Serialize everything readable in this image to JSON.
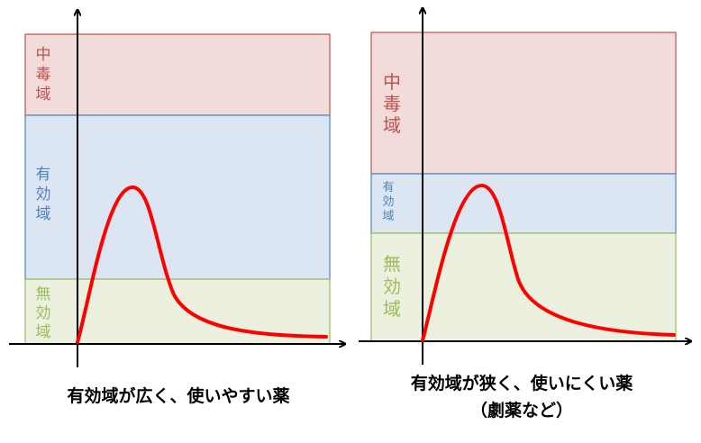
{
  "colors": {
    "toxic_fill": "#f2dcdb",
    "toxic_border": "#c0504d",
    "toxic_text": "#c0504d",
    "effective_fill": "#dce6f2",
    "effective_border": "#4f81bd",
    "effective_text": "#4f81bd",
    "ineffective_fill": "#ebf1de",
    "ineffective_border": "#9bbb59",
    "ineffective_text": "#9bbb59",
    "curve": "#ff0000",
    "axis": "#000000"
  },
  "left_diagram": {
    "zones": {
      "toxic": [
        "中",
        "毒",
        "域"
      ],
      "effective": [
        "有",
        "効",
        "域"
      ],
      "ineffective": [
        "無",
        "効",
        "域"
      ]
    },
    "caption": "有効域が広く、使いやすい薬"
  },
  "right_diagram": {
    "zones": {
      "toxic": [
        "中",
        "毒",
        "域"
      ],
      "effective": [
        "有",
        "効",
        "域"
      ],
      "ineffective": [
        "無",
        "効",
        "域"
      ]
    },
    "caption_line1": "有効域が狭く、使いにくい薬",
    "caption_line2": "（劇薬など）"
  }
}
